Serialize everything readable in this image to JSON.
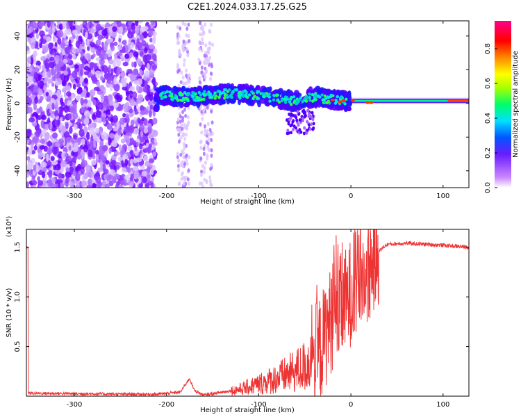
{
  "title": "C2E1.2024.033.17.25.G25",
  "chart_data": [
    {
      "type": "heatmap",
      "name": "spectrogram",
      "xlabel": "Height of straight line (km)",
      "ylabel": "Frequency (Hz)",
      "xlim": [
        -352,
        128
      ],
      "ylim": [
        -50,
        49
      ],
      "xticks": [
        -300,
        -200,
        -100,
        0,
        100
      ],
      "yticks": [
        -40,
        -20,
        0,
        20,
        40
      ],
      "colorbar": {
        "label": "Normalized spectral amplitude",
        "range": [
          0,
          0.96
        ],
        "ticks": [
          0.0,
          0.2,
          0.4,
          0.6,
          0.8
        ],
        "tick_labels": [
          "0.0",
          "0.2",
          "0.4",
          "0.6",
          "0.8"
        ]
      },
      "line_trace": [
        [
          -210,
          5
        ],
        [
          -190,
          4
        ],
        [
          -170,
          4
        ],
        [
          -150,
          5
        ],
        [
          -130,
          6
        ],
        [
          -110,
          5
        ],
        [
          -90,
          4
        ],
        [
          -70,
          2
        ],
        [
          -55,
          1
        ],
        [
          -40,
          4
        ],
        [
          -30,
          3
        ],
        [
          -15,
          2
        ],
        [
          0,
          1.5
        ],
        [
          20,
          1.5
        ],
        [
          60,
          1.5
        ],
        [
          100,
          1.5
        ],
        [
          128,
          1.5
        ]
      ],
      "grid": false
    },
    {
      "type": "line",
      "name": "snr",
      "xlabel": "Height of straight line (km)",
      "ylabel": "SNR (10 * v/v)",
      "y_multiplier_label": "(x10⁴)",
      "xlim": [
        -352,
        128
      ],
      "ylim": [
        0,
        1.68
      ],
      "xticks": [
        -300,
        -200,
        -100,
        0,
        100
      ],
      "yticks": [
        0.5,
        1.0,
        1.5
      ],
      "ytick_labels": [
        "0.5",
        "1.0",
        "1.5"
      ],
      "color": "#ee3333",
      "series": [
        {
          "x": [
            -350,
            -300,
            -250,
            -210,
            -185,
            -175,
            -170,
            -160,
            -140,
            -120,
            -100,
            -80,
            -60,
            -50,
            -40,
            -35,
            -30,
            -25,
            -20,
            -15,
            -10,
            -5,
            0,
            5,
            10,
            15,
            20,
            25,
            30,
            35,
            40,
            60,
            80,
            100,
            128
          ],
          "y": [
            0.03,
            0.025,
            0.02,
            0.02,
            0.04,
            0.18,
            0.06,
            0.01,
            0.04,
            0.07,
            0.12,
            0.18,
            0.25,
            0.3,
            0.38,
            0.45,
            0.55,
            0.7,
            0.8,
            0.85,
            0.9,
            0.95,
            1.05,
            1.12,
            1.18,
            1.22,
            1.28,
            1.38,
            1.45,
            1.5,
            1.53,
            1.54,
            1.53,
            1.52,
            1.5
          ]
        }
      ]
    }
  ]
}
